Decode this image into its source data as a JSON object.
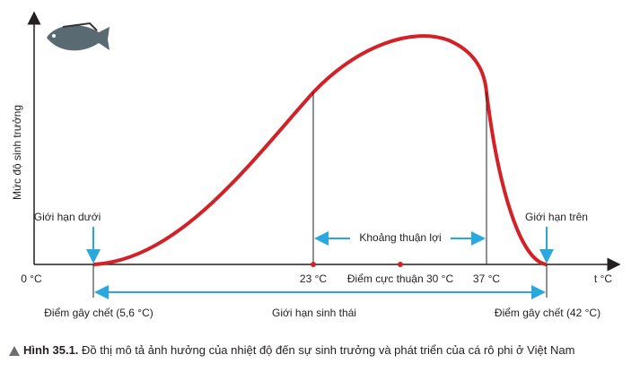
{
  "axes": {
    "y_label": "Mức độ sinh trưởng",
    "x_origin": "0 °C",
    "x_label": "t °C"
  },
  "limits": {
    "lower": "Giới hạn dưới",
    "upper": "Giới hạn trên",
    "favorable": "Khoảng thuận lợi"
  },
  "temperatures": {
    "t23": "23 °C",
    "optimum": "Điểm cực thuận 30 °C",
    "t37": "37 °C"
  },
  "bottom": {
    "lower_death": "Điểm gây chết (5,6 °C)",
    "range": "Giới hạn sinh thái",
    "upper_death": "Điểm gây chết (42 °C)"
  },
  "caption": {
    "label": "Hình 35.1.",
    "text": "Đồ thị mô tả ảnh hưởng của nhiệt độ đến sự sinh trưởng và phát triển của cá rô phi ở Việt Nam"
  }
}
